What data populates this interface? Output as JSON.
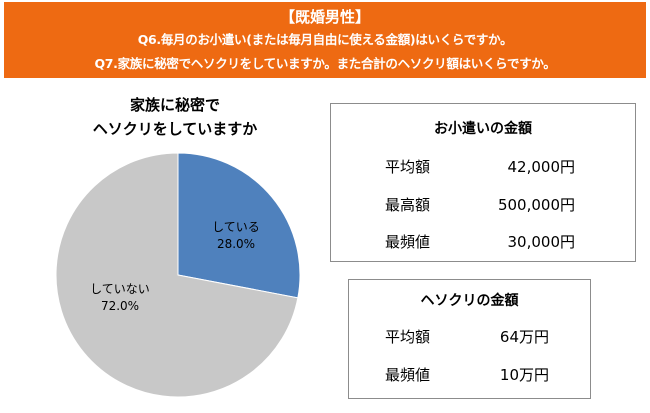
{
  "header": {
    "title": "【既婚男性】",
    "q6": "Q6.毎月のお小遣い(または毎月自由に使える金額)はいくらですか。",
    "q7": "Q7.家族に秘密でヘソクリをしていますか。また合計のヘソクリ額はいくらですか。"
  },
  "colors": {
    "banner": "#ee6a12",
    "yes": "#4f81bd",
    "no": "#c8c8c8"
  },
  "chart_data": {
    "type": "pie",
    "title_line1": "家族に秘密で",
    "title_line2": "ヘソクリをしていますか",
    "slices": [
      {
        "label": "している",
        "value": 28.0,
        "value_label": "28.0%",
        "color": "#4f81bd"
      },
      {
        "label": "していない",
        "value": 72.0,
        "value_label": "72.0%",
        "color": "#c8c8c8"
      }
    ]
  },
  "allowance": {
    "title": "お小遣いの金額",
    "rows": [
      {
        "label": "平均額",
        "value": "42,000円"
      },
      {
        "label": "最高額",
        "value": "500,000円"
      },
      {
        "label": "最頻値",
        "value": "30,000円"
      }
    ]
  },
  "hesokuri": {
    "title": "ヘソクリの金額",
    "rows": [
      {
        "label": "平均額",
        "value": "64万円"
      },
      {
        "label": "最頻値",
        "value": "10万円"
      }
    ]
  }
}
